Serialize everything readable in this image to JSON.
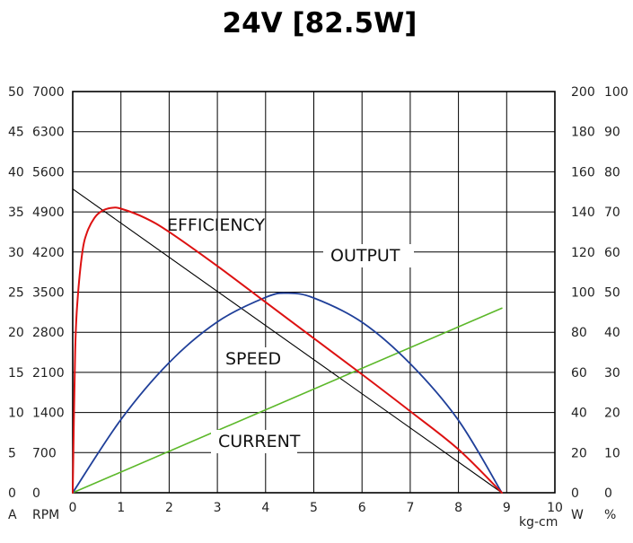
{
  "chart_data": {
    "type": "line",
    "title": "24V [82.5W]",
    "xlabel": "kg-cm",
    "x_ticks": [
      "0",
      "1",
      "2",
      "3",
      "4",
      "5",
      "6",
      "7",
      "8",
      "9",
      "10"
    ],
    "xlim": [
      0,
      10
    ],
    "y_axes": {
      "current": {
        "unit": "A",
        "ticks": [
          "0",
          "5",
          "10",
          "15",
          "20",
          "25",
          "30",
          "35",
          "40",
          "45",
          "50"
        ],
        "range": [
          0,
          50
        ]
      },
      "speed": {
        "unit": "RPM",
        "ticks": [
          "0",
          "700",
          "1400",
          "2100",
          "2800",
          "3500",
          "4200",
          "4900",
          "5600",
          "6300",
          "7000"
        ],
        "range": [
          0,
          7000
        ]
      },
      "output": {
        "unit": "W",
        "ticks": [
          "0",
          "20",
          "40",
          "60",
          "80",
          "100",
          "120",
          "140",
          "160",
          "180",
          "200"
        ],
        "range": [
          0,
          200
        ]
      },
      "efficiency": {
        "unit": "%",
        "ticks": [
          "0",
          "10",
          "20",
          "30",
          "40",
          "50",
          "60",
          "70",
          "80",
          "90",
          "100"
        ],
        "range": [
          0,
          100
        ]
      }
    },
    "grid": true,
    "series": [
      {
        "name": "SPEED",
        "axis": "speed",
        "color": "#000000",
        "x": [
          0,
          8.9
        ],
        "y": [
          5300,
          0
        ]
      },
      {
        "name": "CURRENT",
        "axis": "current",
        "color": "#5cb82a",
        "x": [
          0,
          8.9
        ],
        "y": [
          0,
          23
        ]
      },
      {
        "name": "OUTPUT",
        "axis": "output",
        "color": "#1f3f99",
        "x": [
          0,
          1,
          2,
          3,
          4,
          4.45,
          5,
          6,
          7,
          8,
          8.9
        ],
        "y": [
          0,
          36.5,
          64.9,
          85.2,
          97.4,
          99.5,
          97.1,
          85.0,
          64.3,
          36.1,
          0
        ]
      },
      {
        "name": "EFFICIENCY",
        "axis": "efficiency",
        "color": "#dd1111",
        "x": [
          0,
          0.05,
          0.1,
          0.2,
          0.3,
          0.45,
          0.6,
          0.8,
          1.0,
          1.5,
          2,
          3,
          4,
          5,
          6,
          7,
          8,
          8.9
        ],
        "y": [
          0,
          35,
          48,
          60,
          65,
          68.5,
          70.2,
          71.0,
          70.8,
          68.5,
          65.0,
          56.5,
          47.5,
          38.5,
          29.5,
          20.3,
          10.8,
          0
        ]
      }
    ],
    "annotations": [
      "EFFICIENCY",
      "OUTPUT",
      "SPEED",
      "CURRENT"
    ]
  }
}
